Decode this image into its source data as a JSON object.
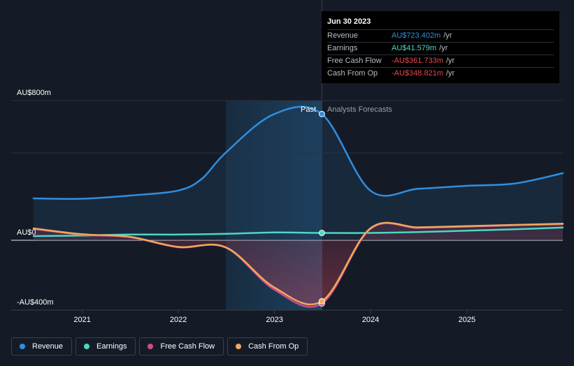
{
  "chart_data": {
    "type": "line",
    "x_axis": {
      "ticks": [
        "2021",
        "2022",
        "2023",
        "2024",
        "2025"
      ],
      "range": [
        "2020-06-30",
        "2025-12-31"
      ]
    },
    "y_axis": {
      "range": [
        -400,
        800
      ],
      "labels": [
        {
          "text": "AU$800m",
          "value": 800
        },
        {
          "text": "AU$0",
          "value": 0
        },
        {
          "text": "-AU$400m",
          "value": -400
        }
      ]
    },
    "regions": {
      "past_label": "Past",
      "forecast_label": "Analysts Forecasts",
      "divider_date": "2023-06-30",
      "highlight_start": "2022-06-30"
    },
    "series": [
      {
        "name": "Revenue",
        "color": "#2f8fe0",
        "points": [
          [
            "2020-06-30",
            240
          ],
          [
            "2020-12-31",
            238
          ],
          [
            "2021-06-30",
            256
          ],
          [
            "2021-12-31",
            285
          ],
          [
            "2022-03-31",
            352
          ],
          [
            "2022-06-30",
            502
          ],
          [
            "2022-12-31",
            723
          ],
          [
            "2023-06-30",
            723
          ],
          [
            "2023-12-31",
            285
          ],
          [
            "2024-06-30",
            295
          ],
          [
            "2024-12-31",
            312
          ],
          [
            "2025-06-30",
            325
          ],
          [
            "2025-12-31",
            384
          ]
        ]
      },
      {
        "name": "Earnings",
        "color": "#4ed6c4",
        "points": [
          [
            "2020-06-30",
            24
          ],
          [
            "2020-12-31",
            27
          ],
          [
            "2021-06-30",
            33
          ],
          [
            "2021-12-31",
            33
          ],
          [
            "2022-06-30",
            37
          ],
          [
            "2022-12-31",
            45
          ],
          [
            "2023-06-30",
            42
          ],
          [
            "2023-12-31",
            42
          ],
          [
            "2024-06-30",
            47
          ],
          [
            "2024-12-31",
            55
          ],
          [
            "2025-06-30",
            63
          ],
          [
            "2025-12-31",
            73
          ]
        ]
      },
      {
        "name": "Free Cash Flow",
        "color": "#d04c8a",
        "points": [
          [
            "2020-06-30",
            65
          ],
          [
            "2020-12-31",
            32
          ],
          [
            "2021-06-30",
            18
          ],
          [
            "2021-12-31",
            -40
          ],
          [
            "2022-06-30",
            -42
          ],
          [
            "2022-12-31",
            -282
          ],
          [
            "2023-06-30",
            -362
          ],
          [
            "2023-12-31",
            65
          ],
          [
            "2024-06-30",
            71
          ],
          [
            "2024-12-31",
            78
          ],
          [
            "2025-06-30",
            86
          ],
          [
            "2025-12-31",
            92
          ]
        ]
      },
      {
        "name": "Cash From Op",
        "color": "#f0a85c",
        "points": [
          [
            "2020-06-30",
            68
          ],
          [
            "2020-12-31",
            35
          ],
          [
            "2021-06-30",
            20
          ],
          [
            "2021-12-31",
            -38
          ],
          [
            "2022-06-30",
            -40
          ],
          [
            "2022-12-31",
            -270
          ],
          [
            "2023-06-30",
            -349
          ],
          [
            "2023-12-31",
            68
          ],
          [
            "2024-06-30",
            74
          ],
          [
            "2024-12-31",
            81
          ],
          [
            "2025-06-30",
            88
          ],
          [
            "2025-12-31",
            95
          ]
        ]
      }
    ],
    "legend": [
      "Revenue",
      "Earnings",
      "Free Cash Flow",
      "Cash From Op"
    ]
  },
  "tooltip": {
    "date": "Jun 30 2023",
    "rows": [
      {
        "name": "Revenue",
        "value": "AU$723.402m",
        "unit": "/yr",
        "color": "#2f8fe0"
      },
      {
        "name": "Earnings",
        "value": "AU$41.579m",
        "unit": "/yr",
        "color": "#4ed6c4"
      },
      {
        "name": "Free Cash Flow",
        "value": "-AU$361.733m",
        "unit": "/yr",
        "color": "#e5484d"
      },
      {
        "name": "Cash From Op",
        "value": "-AU$348.821m",
        "unit": "/yr",
        "color": "#e5484d"
      }
    ]
  },
  "legend": {
    "items": [
      {
        "label": "Revenue",
        "color": "#2f8fe0"
      },
      {
        "label": "Earnings",
        "color": "#4ed6c4"
      },
      {
        "label": "Free Cash Flow",
        "color": "#d04c8a"
      },
      {
        "label": "Cash From Op",
        "color": "#f0a85c"
      }
    ]
  }
}
